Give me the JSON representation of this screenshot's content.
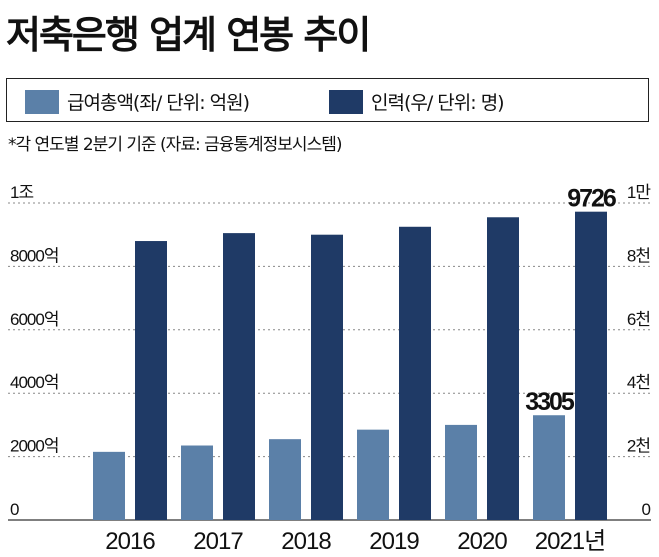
{
  "title": "저축은행 업계 연봉 추이",
  "legend": [
    {
      "label": "급여총액(좌/ 단위: 억원)",
      "color": "#5b80a8"
    },
    {
      "label": "인력(우/ 단위: 명)",
      "color": "#1f3a66"
    }
  ],
  "note": "*각 연도별 2분기 기준  (자료: 금융통계정보시스템)",
  "chart_data": {
    "type": "bar",
    "categories": [
      "2016",
      "2017",
      "2018",
      "2019",
      "2020",
      "2021년"
    ],
    "series": [
      {
        "name": "급여총액(좌/ 단위: 억원)",
        "axis": "left",
        "color": "#5b80a8",
        "values": [
          2150,
          2350,
          2550,
          2850,
          3000,
          3305
        ]
      },
      {
        "name": "인력(우/ 단위: 명)",
        "axis": "right",
        "color": "#1f3a66",
        "values": [
          8800,
          9050,
          9000,
          9250,
          9550,
          9726
        ]
      }
    ],
    "y_left": {
      "lim": [
        0,
        10000
      ],
      "ticks": [
        0,
        2000,
        4000,
        6000,
        8000,
        10000
      ],
      "tick_labels": [
        "0",
        "2000억",
        "4000억",
        "6000억",
        "8000억",
        "1조"
      ]
    },
    "y_right": {
      "lim": [
        0,
        10000
      ],
      "ticks": [
        0,
        2000,
        4000,
        6000,
        8000,
        10000
      ],
      "tick_labels": [
        "0",
        "2천",
        "4천",
        "6천",
        "8천",
        "1만"
      ]
    },
    "data_labels": [
      {
        "series": 0,
        "index": 5,
        "text": "3305"
      },
      {
        "series": 1,
        "index": 5,
        "text": "9726"
      }
    ],
    "grid": "dashed-horizontal"
  }
}
